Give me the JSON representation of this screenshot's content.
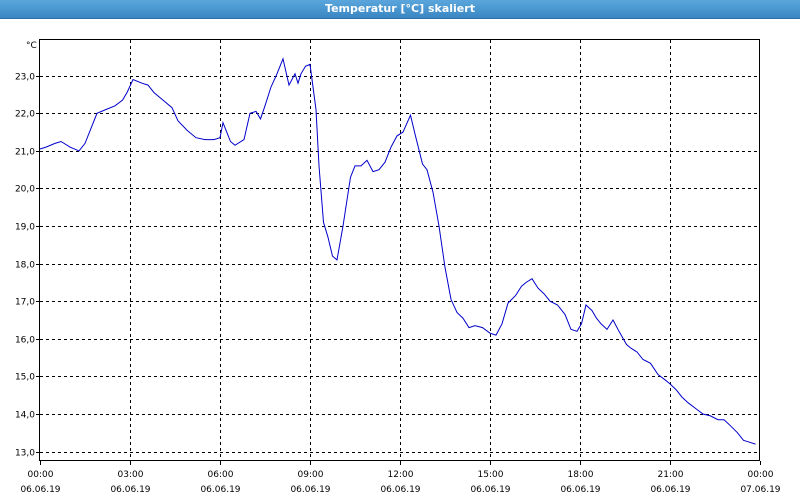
{
  "window": {
    "title": "Temperatur [°C] skaliert"
  },
  "chart_data": {
    "type": "line",
    "title": "Temperatur [°C] skaliert",
    "ylabel": "°C",
    "xlabel": "",
    "ylim": [
      12.75,
      23.95
    ],
    "xlim": [
      0,
      24
    ],
    "grid": true,
    "line_color": "#0000cc",
    "yticks": [
      "13,0",
      "14,0",
      "15,0",
      "16,0",
      "17,0",
      "18,0",
      "19,0",
      "20,0",
      "21,0",
      "22,0",
      "23,0"
    ],
    "ytick_values": [
      13,
      14,
      15,
      16,
      17,
      18,
      19,
      20,
      21,
      22,
      23
    ],
    "xticks": [
      {
        "time": "00:00",
        "date": "06.06.19",
        "hour": 0
      },
      {
        "time": "03:00",
        "date": "06.06.19",
        "hour": 3
      },
      {
        "time": "06:00",
        "date": "06.06.19",
        "hour": 6
      },
      {
        "time": "09:00",
        "date": "06.06.19",
        "hour": 9
      },
      {
        "time": "12:00",
        "date": "06.06.19",
        "hour": 12
      },
      {
        "time": "15:00",
        "date": "06.06.19",
        "hour": 15
      },
      {
        "time": "18:00",
        "date": "06.06.19",
        "hour": 18
      },
      {
        "time": "21:00",
        "date": "06.06.19",
        "hour": 21
      },
      {
        "time": "00:00",
        "date": "07.06.19",
        "hour": 24
      }
    ],
    "series": [
      {
        "x": [
          0,
          0.2,
          0.5,
          0.7,
          1.0,
          1.3,
          1.5,
          1.7,
          1.9,
          2.2,
          2.5,
          2.75,
          2.9,
          3.1,
          3.4,
          3.6,
          3.8,
          4.1,
          4.4,
          4.6,
          4.9,
          5.2,
          5.5,
          5.8,
          6.0,
          6.1,
          6.2,
          6.35,
          6.5,
          6.8,
          7.0,
          7.2,
          7.35,
          7.5,
          7.7,
          7.9,
          8.1,
          8.3,
          8.5,
          8.6,
          8.7,
          8.85,
          9.0,
          9.1,
          9.2,
          9.3,
          9.45,
          9.6,
          9.75,
          9.9,
          10.1,
          10.35,
          10.5,
          10.7,
          10.9,
          11.1,
          11.3,
          11.5,
          11.7,
          11.9,
          12.1,
          12.35,
          12.5,
          12.75,
          12.9,
          13.1,
          13.3,
          13.5,
          13.7,
          13.9,
          14.1,
          14.3,
          14.5,
          14.75,
          15.0,
          15.2,
          15.4,
          15.6,
          15.85,
          16.05,
          16.2,
          16.4,
          16.6,
          16.8,
          17.0,
          17.25,
          17.5,
          17.7,
          17.9,
          18.05,
          18.2,
          18.4,
          18.55,
          18.7,
          18.9,
          19.1,
          19.3,
          19.55,
          19.7,
          19.9,
          20.1,
          20.35,
          20.6,
          20.85,
          21.0,
          21.2,
          21.4,
          21.6,
          21.85,
          22.1,
          22.35,
          22.6,
          22.8,
          23.0,
          23.25,
          23.45,
          23.65,
          23.85
        ],
        "y": [
          21.05,
          21.1,
          21.2,
          21.25,
          21.1,
          21.0,
          21.2,
          21.6,
          22.0,
          22.1,
          22.2,
          22.35,
          22.55,
          22.9,
          22.8,
          22.75,
          22.55,
          22.35,
          22.15,
          21.8,
          21.55,
          21.35,
          21.3,
          21.3,
          21.35,
          21.75,
          21.55,
          21.25,
          21.15,
          21.3,
          22.0,
          22.05,
          21.85,
          22.2,
          22.7,
          23.05,
          23.45,
          22.75,
          23.05,
          22.8,
          23.05,
          23.25,
          23.3,
          22.7,
          22.1,
          20.6,
          19.1,
          18.7,
          18.2,
          18.1,
          19.0,
          20.3,
          20.6,
          20.6,
          20.75,
          20.45,
          20.5,
          20.7,
          21.1,
          21.4,
          21.5,
          21.95,
          21.45,
          20.65,
          20.5,
          19.9,
          19.0,
          17.9,
          17.05,
          16.7,
          16.55,
          16.3,
          16.35,
          16.3,
          16.15,
          16.1,
          16.4,
          16.95,
          17.15,
          17.4,
          17.5,
          17.6,
          17.35,
          17.2,
          17.0,
          16.9,
          16.65,
          16.25,
          16.2,
          16.4,
          16.9,
          16.75,
          16.55,
          16.4,
          16.25,
          16.5,
          16.2,
          15.85,
          15.75,
          15.65,
          15.45,
          15.35,
          15.05,
          14.9,
          14.8,
          14.65,
          14.45,
          14.3,
          14.15,
          14.0,
          13.95,
          13.85,
          13.85,
          13.7,
          13.5,
          13.3,
          13.25,
          13.2
        ]
      }
    ]
  }
}
